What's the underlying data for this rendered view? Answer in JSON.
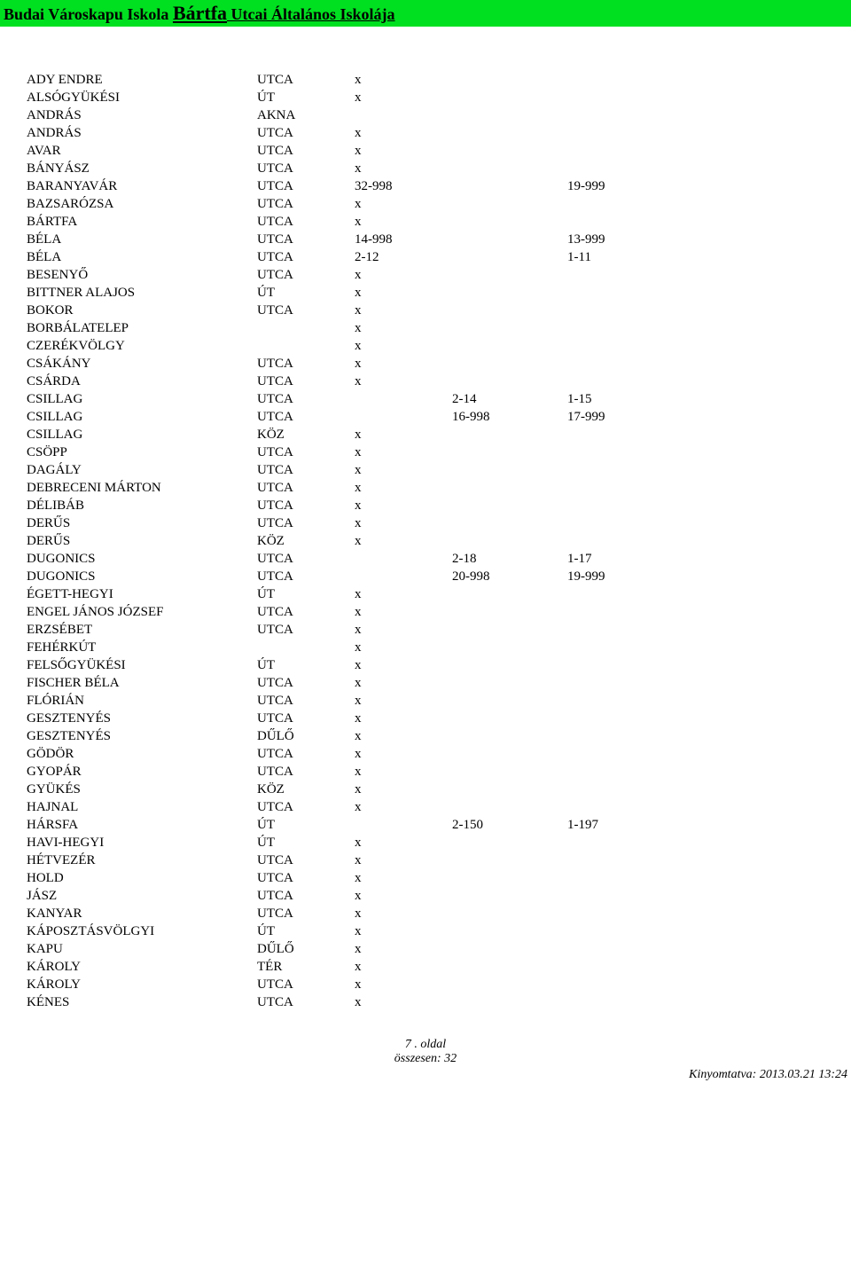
{
  "header": {
    "bg_color": "#00e020",
    "prefix": "Budai Városkapu  Iskola   ",
    "main": "Bártfa",
    "suffix": " Utcai Általános Iskolája"
  },
  "columns_width": [
    "260px",
    "110px",
    "110px",
    "130px",
    "120px"
  ],
  "rows": [
    {
      "name": "ADY ENDRE",
      "type": "UTCA",
      "c3": "x",
      "c4": "",
      "c5": ""
    },
    {
      "name": "ALSÓGYÜKÉSI",
      "type": "ÚT",
      "c3": "x",
      "c4": "",
      "c5": ""
    },
    {
      "name": "ANDRÁS",
      "type": "AKNA",
      "c3": "",
      "c4": "",
      "c5": ""
    },
    {
      "name": "ANDRÁS",
      "type": "UTCA",
      "c3": "x",
      "c4": "",
      "c5": ""
    },
    {
      "name": "AVAR",
      "type": "UTCA",
      "c3": "x",
      "c4": "",
      "c5": ""
    },
    {
      "name": "BÁNYÁSZ",
      "type": "UTCA",
      "c3": "x",
      "c4": "",
      "c5": ""
    },
    {
      "name": "BARANYAVÁR",
      "type": "UTCA",
      "c3": "32-998",
      "c4": "",
      "c5": "19-999"
    },
    {
      "name": "BAZSARÓZSA",
      "type": "UTCA",
      "c3": "x",
      "c4": "",
      "c5": ""
    },
    {
      "name": "BÁRTFA",
      "type": "UTCA",
      "c3": "x",
      "c4": "",
      "c5": ""
    },
    {
      "name": "BÉLA",
      "type": "UTCA",
      "c3": "14-998",
      "c4": "",
      "c5": "13-999"
    },
    {
      "name": "BÉLA",
      "type": "UTCA",
      "c3": "2-12",
      "c4": "",
      "c5": "1-11"
    },
    {
      "name": "BESENYŐ",
      "type": "UTCA",
      "c3": "x",
      "c4": "",
      "c5": ""
    },
    {
      "name": "BITTNER ALAJOS",
      "type": "ÚT",
      "c3": "x",
      "c4": "",
      "c5": ""
    },
    {
      "name": "BOKOR",
      "type": "UTCA",
      "c3": "x",
      "c4": "",
      "c5": ""
    },
    {
      "name": "BORBÁLATELEP",
      "type": "",
      "c3": "x",
      "c4": "",
      "c5": ""
    },
    {
      "name": "CZERÉKVÖLGY",
      "type": "",
      "c3": "x",
      "c4": "",
      "c5": ""
    },
    {
      "name": "CSÁKÁNY",
      "type": "UTCA",
      "c3": "x",
      "c4": "",
      "c5": ""
    },
    {
      "name": "CSÁRDA",
      "type": "UTCA",
      "c3": "x",
      "c4": "",
      "c5": ""
    },
    {
      "name": "CSILLAG",
      "type": "UTCA",
      "c3": "",
      "c4": "2-14",
      "c5": "1-15"
    },
    {
      "name": "CSILLAG",
      "type": "UTCA",
      "c3": "",
      "c4": "16-998",
      "c5": "17-999"
    },
    {
      "name": "CSILLAG",
      "type": "KÖZ",
      "c3": "x",
      "c4": "",
      "c5": ""
    },
    {
      "name": "CSÖPP",
      "type": "UTCA",
      "c3": "x",
      "c4": "",
      "c5": ""
    },
    {
      "name": "DAGÁLY",
      "type": "UTCA",
      "c3": "x",
      "c4": "",
      "c5": ""
    },
    {
      "name": "DEBRECENI MÁRTON",
      "type": "UTCA",
      "c3": "x",
      "c4": "",
      "c5": ""
    },
    {
      "name": "DÉLIBÁB",
      "type": "UTCA",
      "c3": "x",
      "c4": "",
      "c5": ""
    },
    {
      "name": "DERŰS",
      "type": "UTCA",
      "c3": "x",
      "c4": "",
      "c5": ""
    },
    {
      "name": "DERŰS",
      "type": "KÖZ",
      "c3": "x",
      "c4": "",
      "c5": ""
    },
    {
      "name": "DUGONICS",
      "type": "UTCA",
      "c3": "",
      "c4": "2-18",
      "c5": "1-17"
    },
    {
      "name": "DUGONICS",
      "type": "UTCA",
      "c3": "",
      "c4": "20-998",
      "c5": "19-999"
    },
    {
      "name": "ÉGETT-HEGYI",
      "type": "ÚT",
      "c3": "x",
      "c4": "",
      "c5": ""
    },
    {
      "name": "ENGEL JÁNOS JÓZSEF",
      "type": "UTCA",
      "c3": "x",
      "c4": "",
      "c5": ""
    },
    {
      "name": "ERZSÉBET",
      "type": "UTCA",
      "c3": "x",
      "c4": "",
      "c5": ""
    },
    {
      "name": "FEHÉRKÚT",
      "type": "",
      "c3": "x",
      "c4": "",
      "c5": ""
    },
    {
      "name": "FELSŐGYÜKÉSI",
      "type": "ÚT",
      "c3": "x",
      "c4": "",
      "c5": ""
    },
    {
      "name": "FISCHER BÉLA",
      "type": "UTCA",
      "c3": "x",
      "c4": "",
      "c5": ""
    },
    {
      "name": "FLÓRIÁN",
      "type": "UTCA",
      "c3": "x",
      "c4": "",
      "c5": ""
    },
    {
      "name": "GESZTENYÉS",
      "type": "UTCA",
      "c3": "x",
      "c4": "",
      "c5": ""
    },
    {
      "name": "GESZTENYÉS",
      "type": "DŰLŐ",
      "c3": "x",
      "c4": "",
      "c5": ""
    },
    {
      "name": "GÖDÖR",
      "type": "UTCA",
      "c3": "x",
      "c4": "",
      "c5": ""
    },
    {
      "name": "GYOPÁR",
      "type": "UTCA",
      "c3": "x",
      "c4": "",
      "c5": ""
    },
    {
      "name": "GYÜKÉS",
      "type": "KÖZ",
      "c3": "x",
      "c4": "",
      "c5": ""
    },
    {
      "name": "HAJNAL",
      "type": "UTCA",
      "c3": "x",
      "c4": "",
      "c5": ""
    },
    {
      "name": "HÁRSFA",
      "type": "ÚT",
      "c3": "",
      "c4": "2-150",
      "c5": "1-197"
    },
    {
      "name": "HAVI-HEGYI",
      "type": "ÚT",
      "c3": "x",
      "c4": "",
      "c5": ""
    },
    {
      "name": "HÉTVEZÉR",
      "type": "UTCA",
      "c3": "x",
      "c4": "",
      "c5": ""
    },
    {
      "name": "HOLD",
      "type": "UTCA",
      "c3": "x",
      "c4": "",
      "c5": ""
    },
    {
      "name": "JÁSZ",
      "type": "UTCA",
      "c3": "x",
      "c4": "",
      "c5": ""
    },
    {
      "name": "KANYAR",
      "type": "UTCA",
      "c3": "x",
      "c4": "",
      "c5": ""
    },
    {
      "name": "KÁPOSZTÁSVÖLGYI",
      "type": "ÚT",
      "c3": "x",
      "c4": "",
      "c5": ""
    },
    {
      "name": "KAPU",
      "type": "DŰLŐ",
      "c3": "x",
      "c4": "",
      "c5": ""
    },
    {
      "name": "KÁROLY",
      "type": "TÉR",
      "c3": "x",
      "c4": "",
      "c5": ""
    },
    {
      "name": "KÁROLY",
      "type": "UTCA",
      "c3": "x",
      "c4": "",
      "c5": ""
    },
    {
      "name": "KÉNES",
      "type": "UTCA",
      "c3": "x",
      "c4": "",
      "c5": ""
    }
  ],
  "footer": {
    "page_line": "7 . oldal",
    "total_line": "összesen: 32",
    "printed": "Kinyomtatva: 2013.03.21  13:24"
  }
}
